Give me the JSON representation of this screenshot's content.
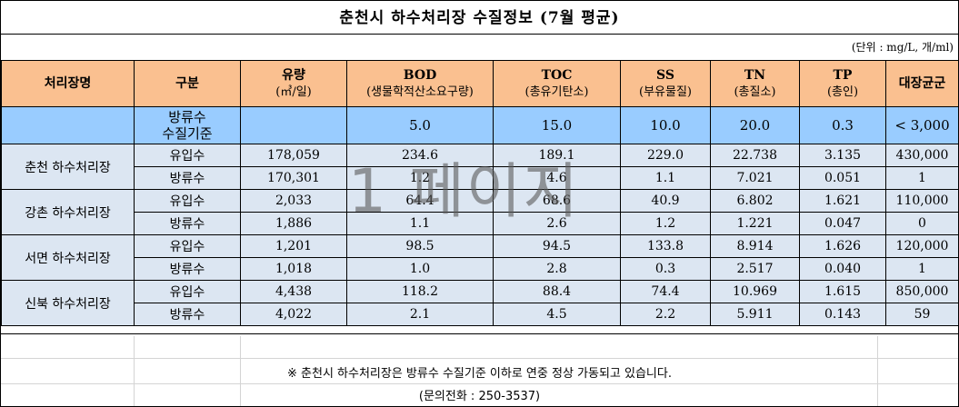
{
  "title": "춘천시 하수처리장 수질정보 (7월 평균)",
  "unit_note": "(단위 : mg/L, 개/ml)",
  "headers": [
    {
      "main": "처리장명",
      "sub": ""
    },
    {
      "main": "구분",
      "sub": ""
    },
    {
      "main": "유량",
      "sub": "(㎥/일)"
    },
    {
      "main": "BOD",
      "sub": "(생물학적산소요구량)"
    },
    {
      "main": "TOC",
      "sub": "(총유기탄소)"
    },
    {
      "main": "SS",
      "sub": "(부유물질)"
    },
    {
      "main": "TN",
      "sub": "(총질소)"
    },
    {
      "main": "TP",
      "sub": "(총인)"
    },
    {
      "main": "대장균군",
      "sub": ""
    }
  ],
  "standard": {
    "label_line1": "방류수",
    "label_line2": "수질기준",
    "flow": "",
    "bod": "5.0",
    "toc": "15.0",
    "ss": "10.0",
    "tn": "20.0",
    "tp": "0.3",
    "coliform": "< 3,000"
  },
  "plants": [
    {
      "name": "춘천 하수처리장",
      "rows": [
        {
          "type": "유입수",
          "flow": "178,059",
          "bod": "234.6",
          "toc": "189.1",
          "ss": "229.0",
          "tn": "22.738",
          "tp": "3.135",
          "coliform": "430,000"
        },
        {
          "type": "방류수",
          "flow": "170,301",
          "bod": "1.2",
          "toc": "4.6",
          "ss": "1.1",
          "tn": "7.021",
          "tp": "0.051",
          "coliform": "1"
        }
      ]
    },
    {
      "name": "강촌 하수처리장",
      "rows": [
        {
          "type": "유입수",
          "flow": "2,033",
          "bod": "64.4",
          "toc": "68.6",
          "ss": "40.9",
          "tn": "6.802",
          "tp": "1.621",
          "coliform": "110,000"
        },
        {
          "type": "방류수",
          "flow": "1,886",
          "bod": "1.1",
          "toc": "2.6",
          "ss": "1.2",
          "tn": "1.221",
          "tp": "0.047",
          "coliform": "0"
        }
      ]
    },
    {
      "name": "서면 하수처리장",
      "rows": [
        {
          "type": "유입수",
          "flow": "1,201",
          "bod": "98.5",
          "toc": "94.5",
          "ss": "133.8",
          "tn": "8.914",
          "tp": "1.626",
          "coliform": "120,000"
        },
        {
          "type": "방류수",
          "flow": "1,018",
          "bod": "1.0",
          "toc": "2.8",
          "ss": "0.3",
          "tn": "2.517",
          "tp": "0.040",
          "coliform": "1"
        }
      ]
    },
    {
      "name": "신북 하수처리장",
      "rows": [
        {
          "type": "유입수",
          "flow": "4,438",
          "bod": "118.2",
          "toc": "88.4",
          "ss": "74.4",
          "tn": "10.969",
          "tp": "1.615",
          "coliform": "850,000"
        },
        {
          "type": "방류수",
          "flow": "4,022",
          "bod": "2.1",
          "toc": "4.5",
          "ss": "2.2",
          "tn": "5.911",
          "tp": "0.143",
          "coliform": "59"
        }
      ]
    }
  ],
  "footnote": "※ 춘천시 하수처리장은 방류수 수질기준 이하로 연중 정상 가동되고 있습니다.",
  "contact": "(문의전화 : 250-3537)",
  "watermark": "1 페이지",
  "colors": {
    "header_bg": "#fac090",
    "standard_bg": "#99ccff",
    "data_bg": "#dce6f2"
  }
}
